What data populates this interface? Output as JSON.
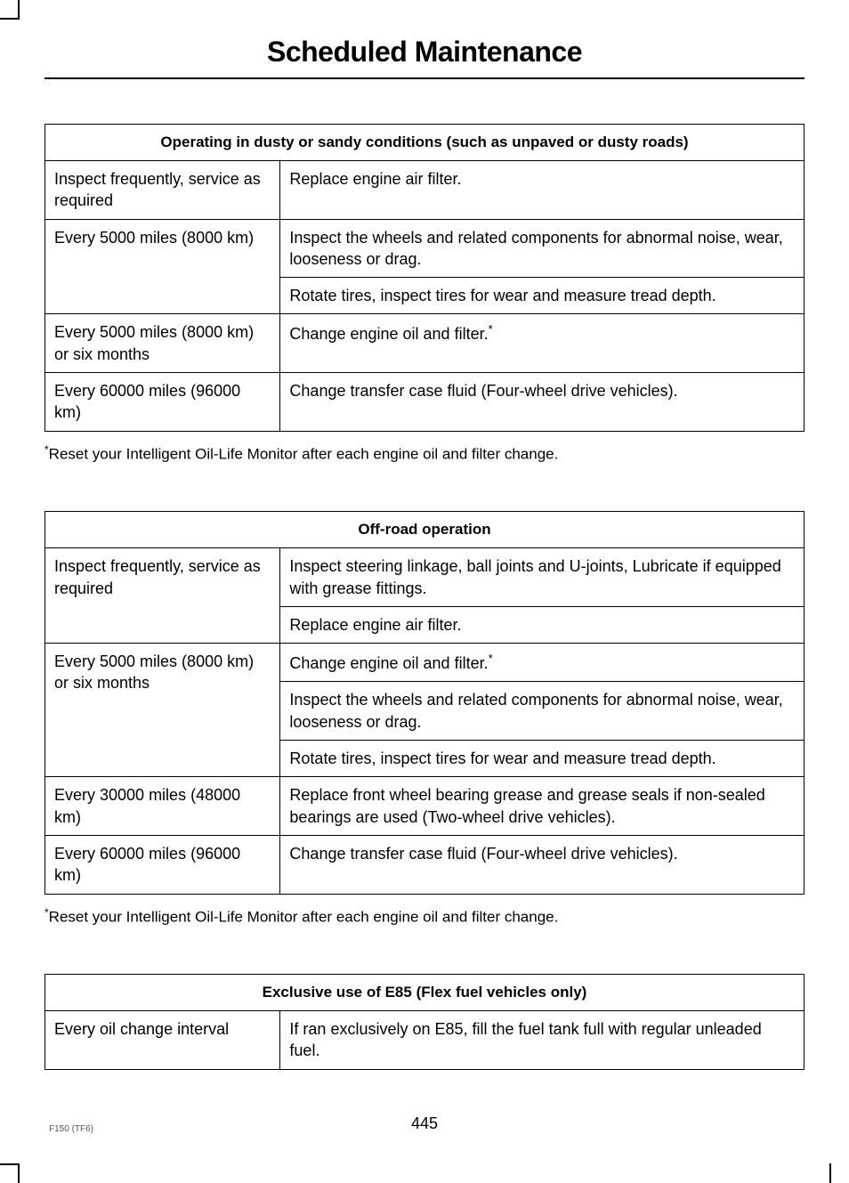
{
  "page_title": "Scheduled Maintenance",
  "table1": {
    "header": "Operating in dusty or sandy conditions (such as unpaved or dusty roads)",
    "rows": [
      {
        "c1": "Inspect frequently, service as required",
        "c2": "Replace engine air filter."
      },
      {
        "c1": "Every 5000 miles (8000 km)",
        "c2": "Inspect the wheels and related components for abnormal noise, wear, looseness or drag."
      },
      {
        "c1": "",
        "c2": "Rotate tires, inspect tires for wear and measure tread depth."
      },
      {
        "c1": "Every 5000 miles (8000 km) or six months",
        "c2": "Change engine oil and filter.",
        "sup": "*"
      },
      {
        "c1": "Every 60000 miles (96000 km)",
        "c2": "Change transfer case fluid (Four-wheel drive vehicles)."
      }
    ]
  },
  "footnote1": {
    "sup": "*",
    "text": "Reset your Intelligent Oil-Life Monitor after each engine oil and filter change."
  },
  "table2": {
    "header": "Off-road operation",
    "rows": [
      {
        "c1": "Inspect frequently, service as required",
        "c2": "Inspect steering linkage, ball joints and U-joints, Lubricate if equipped with grease fittings."
      },
      {
        "c1": "",
        "c2": "Replace engine air filter."
      },
      {
        "c1": "Every 5000 miles (8000 km) or six months",
        "c2": "Change engine oil and filter.",
        "sup": "*"
      },
      {
        "c1": "",
        "c2": "Inspect the wheels and related components for abnormal noise, wear, looseness or drag."
      },
      {
        "c1": "",
        "c2": "Rotate tires, inspect tires for wear and measure tread depth."
      },
      {
        "c1": "Every 30000 miles (48000 km)",
        "c2": "Replace front wheel bearing grease and grease seals if non-sealed bearings are used (Two-wheel drive vehicles)."
      },
      {
        "c1": "Every 60000 miles (96000 km)",
        "c2": "Change transfer case fluid (Four-wheel drive vehicles)."
      }
    ]
  },
  "footnote2": {
    "sup": "*",
    "text": "Reset your Intelligent Oil-Life Monitor after each engine oil and filter change."
  },
  "table3": {
    "header": "Exclusive use of E85 (Flex fuel vehicles only)",
    "rows": [
      {
        "c1": "Every oil change interval",
        "c2": "If ran exclusively on E85, fill the fuel tank full with regular unleaded fuel."
      }
    ]
  },
  "page_number": "445",
  "footer_code": "F150 (TF6)",
  "styling": {
    "background_color": "#ffffff",
    "text_color": "#000000",
    "border_color": "#000000",
    "title_fontsize": 32,
    "header_fontsize": 17,
    "cell_fontsize": 18,
    "footnote_fontsize": 17,
    "page_number_fontsize": 18,
    "footer_code_fontsize": 10
  }
}
